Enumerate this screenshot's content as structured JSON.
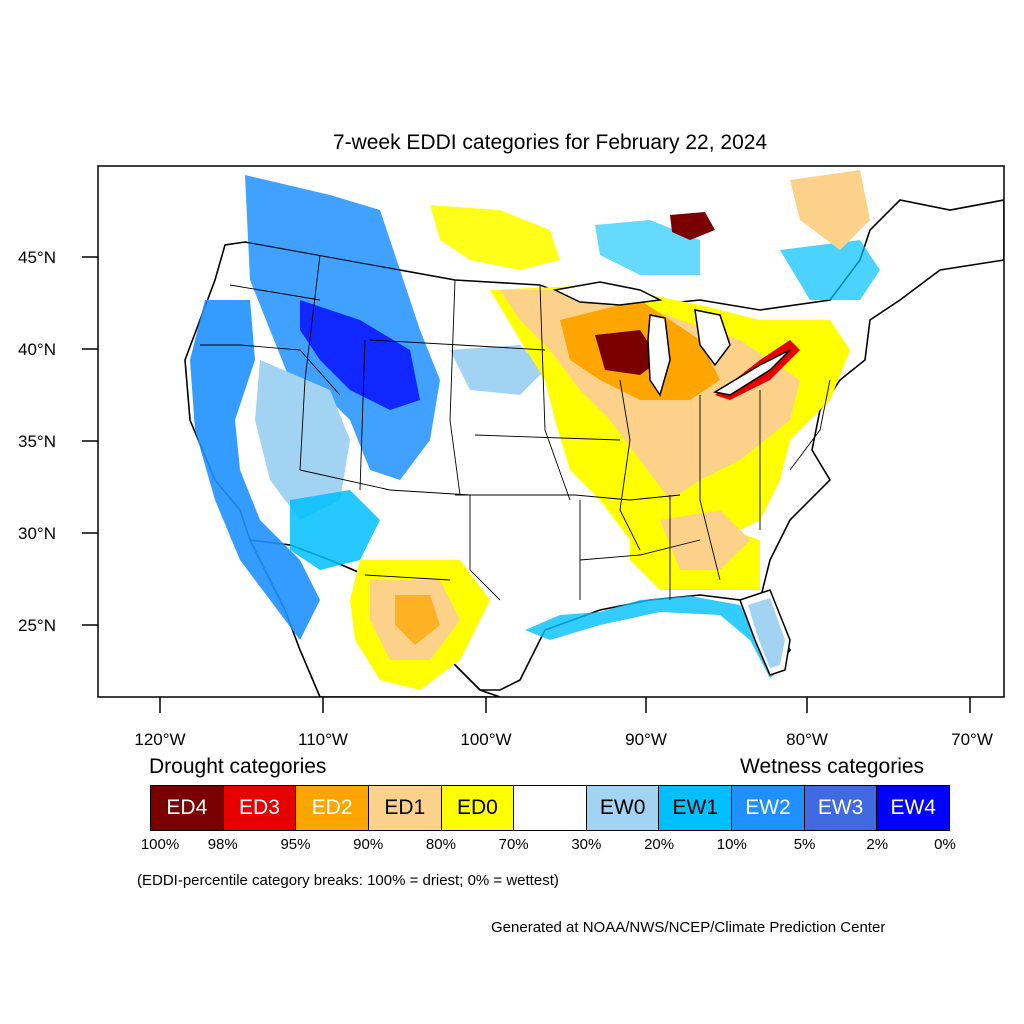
{
  "title": "7-week EDDI categories for February 22, 2024",
  "latitude_labels": [
    "45°N",
    "40°N",
    "35°N",
    "30°N",
    "25°N"
  ],
  "longitude_labels": [
    "120°W",
    "110°W",
    "100°W",
    "90°W",
    "80°W",
    "70°W"
  ],
  "legend": {
    "drought_heading": "Drought categories",
    "wetness_heading": "Wetness categories",
    "categories": [
      {
        "label": "ED4",
        "color": "#7a0000",
        "text_color": "#ffffff"
      },
      {
        "label": "ED3",
        "color": "#e60000",
        "text_color": "#ffffff"
      },
      {
        "label": "ED2",
        "color": "#ffa500",
        "text_color": "#ffffff"
      },
      {
        "label": "ED1",
        "color": "#fcd28a",
        "text_color": "#000000"
      },
      {
        "label": "ED0",
        "color": "#ffff00",
        "text_color": "#000000"
      },
      {
        "label": "",
        "color": "#ffffff",
        "text_color": "#000000"
      },
      {
        "label": "EW0",
        "color": "#a3d3f2",
        "text_color": "#000000"
      },
      {
        "label": "EW1",
        "color": "#00bfff",
        "text_color": "#000000"
      },
      {
        "label": "EW2",
        "color": "#1e90ff",
        "text_color": "#ffffff"
      },
      {
        "label": "EW3",
        "color": "#4169e1",
        "text_color": "#ffffff"
      },
      {
        "label": "EW4",
        "color": "#0000ff",
        "text_color": "#ffffff"
      }
    ],
    "percentile_breaks": [
      "100%",
      "98%",
      "95%",
      "90%",
      "80%",
      "70%",
      "30%",
      "20%",
      "10%",
      "5%",
      "2%",
      "0%"
    ]
  },
  "note": "(EDDI-percentile category breaks: 100% = driest; 0% = wettest)",
  "credit": "Generated at NOAA/NWS/NCEP/Climate Prediction Center"
}
